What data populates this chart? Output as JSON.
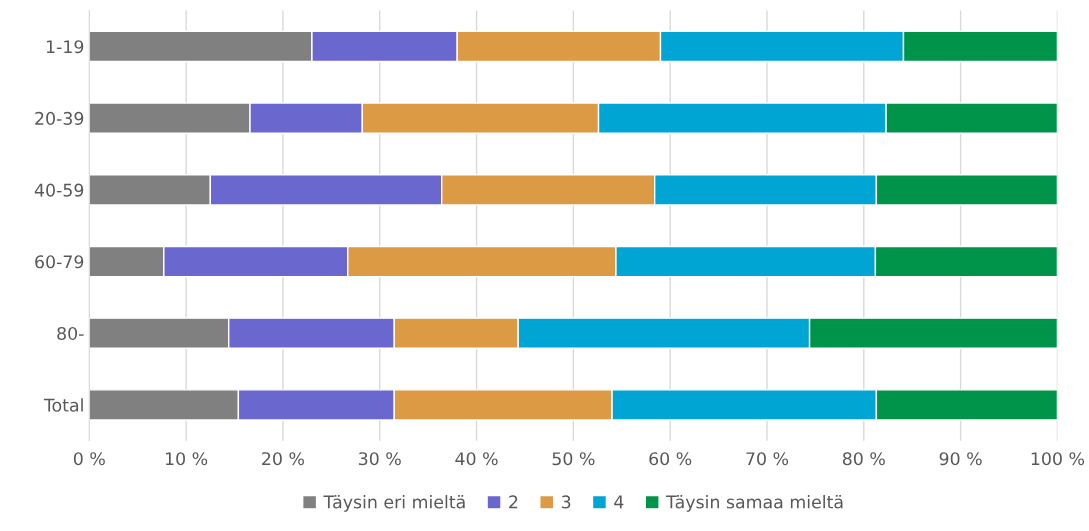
{
  "chart_data": {
    "type": "bar",
    "orientation": "horizontal",
    "stacked": true,
    "categories": [
      "1-19",
      "20-39",
      "40-59",
      "60-79",
      "80-",
      "Total"
    ],
    "series": [
      {
        "name": "Täysin eri mieltä",
        "color": "#808080",
        "values": [
          23.0,
          16.6,
          12.5,
          7.7,
          14.4,
          15.4
        ]
      },
      {
        "name": "2",
        "color": "#6a67cf",
        "values": [
          15.0,
          11.6,
          23.9,
          19.0,
          17.1,
          16.1
        ]
      },
      {
        "name": "3",
        "color": "#dd9a45",
        "values": [
          21.0,
          24.4,
          22.0,
          27.7,
          12.8,
          22.5
        ]
      },
      {
        "name": "4",
        "color": "#00a5d3",
        "values": [
          25.1,
          29.7,
          22.9,
          26.8,
          30.1,
          27.3
        ]
      },
      {
        "name": "Täysin samaa mieltä",
        "color": "#00944a",
        "values": [
          15.9,
          17.7,
          18.7,
          18.8,
          25.6,
          18.7
        ]
      }
    ],
    "xlim": [
      0,
      100
    ],
    "xticks": [
      {
        "value": 0,
        "label": "0 %"
      },
      {
        "value": 10,
        "label": "10 %"
      },
      {
        "value": 20,
        "label": "20 %"
      },
      {
        "value": 30,
        "label": "30 %"
      },
      {
        "value": 40,
        "label": "40 %"
      },
      {
        "value": 50,
        "label": "50 %"
      },
      {
        "value": 60,
        "label": "60 %"
      },
      {
        "value": 70,
        "label": "70 %"
      },
      {
        "value": 80,
        "label": "80 %"
      },
      {
        "value": 90,
        "label": "90 %"
      },
      {
        "value": 100,
        "label": "100 %"
      }
    ],
    "grid": "x",
    "legend": "bottom"
  }
}
